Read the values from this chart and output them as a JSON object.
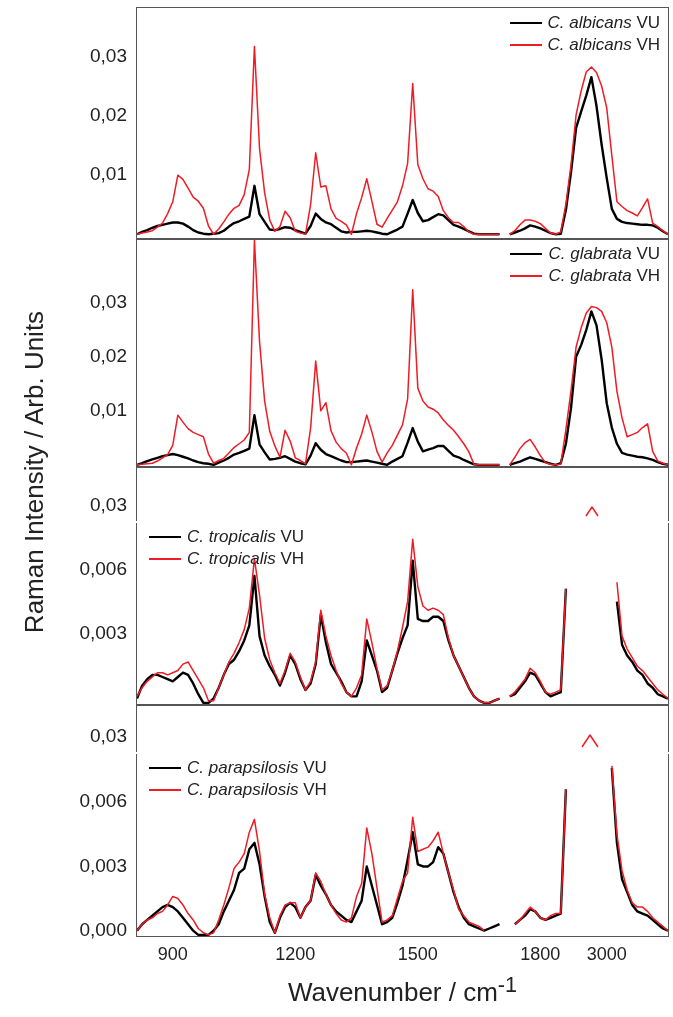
{
  "chart_data": [
    {
      "type": "line",
      "ylabel": "Raman Intensity / Arb. Units",
      "legend": "top right",
      "tick_labels": "y",
      "categories": [
        null,
        null,
        null,
        null,
        null,
        null,
        null,
        "900",
        null,
        null,
        null,
        null,
        null,
        null,
        null,
        null,
        null,
        null,
        null,
        null,
        null,
        null,
        null,
        null,
        null,
        null,
        null,
        null,
        null,
        null,
        null,
        "1200",
        null,
        null,
        null,
        null,
        null,
        null,
        null,
        null,
        null,
        null,
        null,
        null,
        null,
        null,
        null,
        null,
        null,
        null,
        null,
        null,
        null,
        null,
        null,
        "1500",
        null,
        null,
        null,
        null,
        null,
        null,
        null,
        null,
        null,
        null,
        null,
        null,
        null,
        null,
        null,
        null,
        null,
        null,
        null,
        null,
        null,
        null,
        null,
        "1800",
        null,
        null,
        null,
        null,
        null,
        null,
        null,
        null,
        null,
        null,
        null,
        null,
        "3000",
        null,
        null,
        null,
        null,
        null,
        null,
        null,
        null,
        null,
        null,
        null,
        null
      ],
      "ylim": [
        -0.0008,
        0.0383
      ],
      "yticks": [
        {
          "value": 0.01,
          "label": "0,01"
        },
        {
          "value": 0.02,
          "label": "0,02"
        },
        {
          "value": 0.03,
          "label": "0,03"
        }
      ],
      "series": [
        {
          "name": "C. albicans VU",
          "color": "#000000",
          "values": [
            0,
            0.0004,
            0.0007,
            0.0011,
            0.0014,
            0.0016,
            0.0018,
            0.002,
            0.002,
            0.0018,
            0.0013,
            0.0007,
            0.0003,
            0.0001,
            0,
            0.0001,
            0.0002,
            0.0006,
            0.0013,
            0.0019,
            0.0022,
            0.0026,
            0.003,
            0.0082,
            0.0034,
            0.0021,
            0.0008,
            0.0007,
            0.0009,
            0.0012,
            0.0011,
            0.0007,
            0.0004,
            0.0001,
            0.0014,
            0.0035,
            0.0026,
            0.002,
            0.0017,
            0.0011,
            0.0005,
            0.0003,
            0.0004,
            0.0004,
            0.0005,
            0.0006,
            0.0005,
            0.0003,
            0.0001,
            0,
            0.0004,
            0.0008,
            0.0013,
            0.0035,
            0.0058,
            0.0036,
            0.0022,
            0.0024,
            0.0029,
            0.0034,
            0.0032,
            0.0024,
            0.0016,
            0.0013,
            0.0009,
            0.0005,
            0.0001,
            0,
            0,
            0,
            0,
            0,
            null,
            0,
            0.0003,
            0.0006,
            0.001,
            0.0015,
            0.0013,
            0.001,
            0.0006,
            0.0002,
            0,
            0.0001,
            0.0041,
            0.0105,
            0.018,
            0.0208,
            0.0235,
            0.0266,
            0.0217,
            0.0152,
            0.0095,
            0.0043,
            0.0026,
            0.0021,
            0.0019,
            0.0018,
            0.0017,
            0.0016,
            0.0016,
            0.0015,
            0.0011,
            0.0005,
            0
          ]
        },
        {
          "name": "C. albicans VH",
          "color": "#ee1c25",
          "values": [
            0,
            0.0002,
            0.0004,
            0.0006,
            0.0012,
            0.0019,
            0.0035,
            0.0055,
            0.01,
            0.0093,
            0.0078,
            0.0063,
            0.0056,
            0.0044,
            0.0014,
            0,
            0.0009,
            0.0021,
            0.0034,
            0.0044,
            0.0049,
            0.0067,
            0.011,
            0.0318,
            0.0145,
            0.007,
            0.0024,
            0.0005,
            0.0013,
            0.0039,
            0.0028,
            0.0005,
            0.0002,
            0,
            0.005,
            0.0138,
            0.008,
            0.0082,
            0.0043,
            0.0027,
            0.0022,
            0.0016,
            0,
            0.0035,
            0.0062,
            0.0094,
            0.0056,
            0.0017,
            0.0012,
            0.0027,
            0.0041,
            0.0055,
            0.0082,
            0.012,
            0.0255,
            0.0118,
            0.0094,
            0.0077,
            0.0073,
            0.0064,
            0.004,
            0.0028,
            0.002,
            0.002,
            0.0013,
            0.0004,
            0,
            0,
            0,
            0,
            0,
            0,
            null,
            0,
            0.0006,
            0.0016,
            0.0024,
            0.0024,
            0.0022,
            0.0018,
            0.001,
            0.0002,
            0,
            0.0004,
            0.0051,
            0.0117,
            0.0202,
            0.0243,
            0.0275,
            0.0283,
            0.0274,
            0.0251,
            0.0214,
            0.0133,
            0.0055,
            0.0047,
            0.004,
            0.0036,
            0.0031,
            0.0045,
            0.006,
            0.0019,
            0.0013,
            0.0006,
            0
          ]
        }
      ]
    },
    {
      "type": "line",
      "legend": "top right",
      "tick_labels": "y",
      "categories": [
        null,
        null,
        null,
        null,
        null,
        null,
        null,
        "900",
        null,
        null,
        null,
        null,
        null,
        null,
        null,
        null,
        null,
        null,
        null,
        null,
        null,
        null,
        null,
        null,
        null,
        null,
        null,
        null,
        null,
        null,
        null,
        "1200",
        null,
        null,
        null,
        null,
        null,
        null,
        null,
        null,
        null,
        null,
        null,
        null,
        null,
        null,
        null,
        null,
        null,
        null,
        null,
        null,
        null,
        null,
        null,
        "1500",
        null,
        null,
        null,
        null,
        null,
        null,
        null,
        null,
        null,
        null,
        null,
        null,
        null,
        null,
        null,
        null,
        null,
        null,
        null,
        null,
        null,
        null,
        null,
        "1800",
        null,
        null,
        null,
        null,
        null,
        null,
        null,
        null,
        null,
        null,
        null,
        null,
        "3000",
        null,
        null,
        null,
        null,
        null,
        null,
        null,
        null,
        null,
        null,
        null,
        null
      ],
      "ylim": [
        -0.0004,
        0.0418
      ],
      "yticks": [
        {
          "value": 0.01,
          "label": "0,01"
        },
        {
          "value": 0.02,
          "label": "0,02"
        },
        {
          "value": 0.03,
          "label": "0,03"
        }
      ],
      "series": [
        {
          "name": "C. glabrata VU",
          "color": "#000000",
          "values": [
            0,
            0.0003,
            0.0007,
            0.001,
            0.0013,
            0.0016,
            0.0018,
            0.002,
            0.0018,
            0.0015,
            0.0012,
            0.0008,
            0.0005,
            0.0003,
            0.0002,
            0,
            0.0004,
            0.0008,
            0.0013,
            0.0019,
            0.0022,
            0.0026,
            0.003,
            0.0092,
            0.0038,
            0.0023,
            0.001,
            0.0011,
            0.0013,
            0.0016,
            0.0011,
            0.0006,
            0.0003,
            0.0001,
            0.0017,
            0.004,
            0.0028,
            0.002,
            0.0016,
            0.0012,
            0.0008,
            0.0005,
            0.0005,
            0.0006,
            0.0007,
            0.0008,
            0.0006,
            0.0004,
            0.0002,
            0,
            0.0006,
            0.0011,
            0.0016,
            0.0041,
            0.0068,
            0.0043,
            0.0025,
            0.0028,
            0.0031,
            0.0035,
            0.0035,
            0.0026,
            0.0017,
            0.0014,
            0.0009,
            0.0005,
            0.0001,
            0,
            0,
            0,
            0,
            0,
            null,
            0,
            0.0003,
            0.0006,
            0.001,
            0.0014,
            0.0011,
            0.0008,
            0.0005,
            0.0002,
            0,
            0.0003,
            0.0039,
            0.0105,
            0.02,
            0.0222,
            0.025,
            0.0284,
            0.0258,
            0.0195,
            0.0114,
            0.0069,
            0.0039,
            0.0022,
            0.0019,
            0.0017,
            0.0015,
            0.0014,
            0.0012,
            0.0009,
            0.0005,
            0.0002,
            0
          ]
        },
        {
          "name": "C. glabrata VH",
          "color": "#ee1c25",
          "values": [
            0,
            0.0001,
            0.0002,
            0.0003,
            0.0007,
            0.0013,
            0.0019,
            0.0036,
            0.0092,
            0.0079,
            0.0067,
            0.006,
            0.0056,
            0.0052,
            0.002,
            0.0003,
            0.0008,
            0.0012,
            0.0022,
            0.0032,
            0.0039,
            0.0046,
            0.006,
            0.0416,
            0.0228,
            0.0118,
            0.0062,
            0.0035,
            0.0014,
            0.0064,
            0.0044,
            0.0013,
            0.0008,
            0.0002,
            0.0068,
            0.0192,
            0.01,
            0.0115,
            0.0063,
            0.0042,
            0.003,
            0.0022,
            0,
            0.0031,
            0.0057,
            0.0092,
            0.0061,
            0.0025,
            0.0005,
            0.0022,
            0.0036,
            0.0055,
            0.0074,
            0.0122,
            0.0324,
            0.0142,
            0.0118,
            0.0107,
            0.0103,
            0.0096,
            0.0083,
            0.0073,
            0.0064,
            0.0052,
            0.0039,
            0.0024,
            0.0001,
            0,
            0,
            0,
            0,
            0,
            null,
            0,
            0.0014,
            0.003,
            0.0041,
            0.0047,
            0.0033,
            0.0017,
            0.0004,
            0.0001,
            0,
            0.0001,
            0.0065,
            0.0137,
            0.0218,
            0.0254,
            0.0281,
            0.0293,
            0.0291,
            0.0284,
            0.0263,
            0.0218,
            0.0136,
            0.0087,
            0.0052,
            0.0056,
            0.006,
            0.0069,
            0.0076,
            0.0025,
            0.0007,
            0.0003,
            0
          ]
        }
      ]
    },
    {
      "type": "other",
      "annotations": [
        "0,03"
      ]
    },
    {
      "type": "line",
      "legend": "top left",
      "tick_labels": "y",
      "categories": [
        null,
        null,
        null,
        null,
        null,
        null,
        null,
        "900",
        null,
        null,
        null,
        null,
        null,
        null,
        null,
        null,
        null,
        null,
        null,
        null,
        null,
        null,
        null,
        null,
        null,
        null,
        null,
        null,
        null,
        null,
        null,
        "1200",
        null,
        null,
        null,
        null,
        null,
        null,
        null,
        null,
        null,
        null,
        null,
        null,
        null,
        null,
        null,
        null,
        null,
        null,
        null,
        null,
        null,
        null,
        null,
        "1500",
        null,
        null,
        null,
        null,
        null,
        null,
        null,
        null,
        null,
        null,
        null,
        null,
        null,
        null,
        null,
        null,
        null,
        null,
        null,
        null,
        null,
        null,
        null,
        "1800",
        null,
        null,
        null,
        null,
        null,
        null,
        null,
        null,
        null,
        null,
        null,
        null,
        "3000",
        null,
        null,
        null,
        null,
        null,
        null,
        null,
        null,
        null,
        null,
        null,
        null
      ],
      "ylim": [
        -0.0003,
        0.0082
      ],
      "yticks": [
        {
          "value": 0.003,
          "label": "0,003"
        },
        {
          "value": 0.006,
          "label": "0,006"
        }
      ],
      "series": [
        {
          "name": "C. tropicalis VU",
          "color": "#000000",
          "values": [
            0,
            0.0006,
            0.0009,
            0.0011,
            0.0011,
            0.001,
            0.0009,
            0.0008,
            0.001,
            0.0012,
            0.0011,
            0.0007,
            0.0002,
            -0.0002,
            -0.0002,
            0,
            0.0005,
            0.0011,
            0.0016,
            0.0018,
            0.0022,
            0.0027,
            0.0034,
            0.0057,
            0.0029,
            0.002,
            0.0015,
            0.0011,
            0.0006,
            0.0012,
            0.002,
            0.0016,
            0.0009,
            0.0004,
            0.0007,
            0.0016,
            0.0039,
            0.0026,
            0.0016,
            0.0012,
            0.0008,
            0.0003,
            0.0001,
            0.0001,
            0.0008,
            0.0027,
            0.002,
            0.0013,
            0.0003,
            0.0005,
            0.0013,
            0.0021,
            0.0028,
            0.0034,
            0.0064,
            0.0037,
            0.0036,
            0.0036,
            0.0038,
            0.0038,
            0.0036,
            0.0027,
            0.002,
            0.0015,
            0.001,
            0.0005,
            0.0001,
            -0.0001,
            -0.0002,
            -0.0002,
            -0.0001,
            0,
            null,
            0.0001,
            0.0002,
            0.0005,
            0.0008,
            0.0012,
            0.0011,
            0.0007,
            0.0003,
            0.0001,
            0.0002,
            0.0003,
            0.0051,
            null,
            null,
            null,
            null,
            null,
            null,
            null,
            null,
            null,
            0.0045,
            0.0025,
            0.002,
            0.0017,
            0.0013,
            0.0011,
            0.0007,
            0.0005,
            0.0002,
            0.0001,
            0
          ]
        },
        {
          "name": "C. tropicalis VH",
          "color": "#ee1c25",
          "values": [
            0.0001,
            0.0005,
            0.0008,
            0.001,
            0.0012,
            0.0012,
            0.0011,
            0.0012,
            0.0013,
            0.0016,
            0.0017,
            0.0013,
            0.0009,
            0.0005,
            -0.0001,
            -0.0001,
            0.0005,
            0.0011,
            0.0017,
            0.0021,
            0.0026,
            0.0032,
            0.0042,
            0.0065,
            0.0048,
            0.0028,
            0.0018,
            0.0012,
            0.0007,
            0.0013,
            0.0021,
            0.0017,
            0.001,
            0.0004,
            0.0008,
            0.0017,
            0.0041,
            0.0029,
            0.002,
            0.0013,
            0.0007,
            0.0003,
            0.0001,
            0.0005,
            0.0011,
            0.0037,
            0.0026,
            0.0014,
            0.0004,
            0.0006,
            0.0013,
            0.0022,
            0.0033,
            0.0045,
            0.0074,
            0.0052,
            0.0043,
            0.0041,
            0.0042,
            0.0041,
            0.0039,
            0.0028,
            0.002,
            0.0015,
            0.001,
            0.0005,
            0.0001,
            -0.0001,
            -0.0002,
            -0.0002,
            -0.0001,
            0,
            null,
            0.0001,
            0.0003,
            0.0006,
            0.0009,
            0.0014,
            0.0012,
            0.0008,
            0.0003,
            0.0002,
            0.0003,
            0.0004,
            0.0051,
            null,
            null,
            null,
            null,
            null,
            null,
            null,
            null,
            null,
            0.0054,
            0.0029,
            0.0023,
            0.0019,
            0.0015,
            0.0013,
            0.001,
            0.0007,
            0.0004,
            0.0002,
            0
          ]
        }
      ]
    },
    {
      "type": "other",
      "annotations": [
        "0,03"
      ]
    },
    {
      "type": "line",
      "xlabel": "Wavenumber / cm$^{-1}$",
      "legend": "top left",
      "categories": [
        null,
        null,
        null,
        null,
        null,
        null,
        null,
        "900",
        null,
        null,
        null,
        null,
        null,
        null,
        null,
        null,
        null,
        null,
        null,
        null,
        null,
        null,
        null,
        null,
        null,
        null,
        null,
        null,
        null,
        null,
        null,
        "1200",
        null,
        null,
        null,
        null,
        null,
        null,
        null,
        null,
        null,
        null,
        null,
        null,
        null,
        null,
        null,
        null,
        null,
        null,
        null,
        null,
        null,
        null,
        null,
        "1500",
        null,
        null,
        null,
        null,
        null,
        null,
        null,
        null,
        null,
        null,
        null,
        null,
        null,
        null,
        null,
        null,
        null,
        null,
        null,
        null,
        null,
        null,
        null,
        "1800",
        null,
        null,
        null,
        null,
        null,
        null,
        null,
        null,
        null,
        null,
        null,
        null,
        "3000",
        null,
        null,
        null,
        null,
        null,
        null,
        null,
        null,
        null,
        null,
        null,
        null
      ],
      "ylim": [
        -0.00025,
        0.0083
      ],
      "yticks": [
        {
          "value": 0,
          "label": "0,000"
        },
        {
          "value": 0.003,
          "label": "0,003"
        },
        {
          "value": 0.006,
          "label": "0,006"
        }
      ],
      "series": [
        {
          "name": "C. parapsilosis VU",
          "color": "#000000",
          "values": [
            0,
            0.0003,
            0.0005,
            0.0007,
            0.0009,
            0.0011,
            0.0012,
            0.0011,
            0.0009,
            0.0006,
            0.0003,
            0,
            -0.0002,
            -0.0002,
            -0.0002,
            0,
            0.0003,
            0.0009,
            0.0014,
            0.0019,
            0.0027,
            0.0029,
            0.0038,
            0.0041,
            0.0031,
            0.0016,
            0.0004,
            -0.0001,
            0.0006,
            0.0011,
            0.0013,
            0.0011,
            0.0006,
            0.0011,
            0.0014,
            0.0026,
            0.0021,
            0.0017,
            0.0012,
            0.0009,
            0.0007,
            0.0005,
            0.0004,
            0.0009,
            0.0014,
            0.003,
            0.0021,
            0.0012,
            0.0003,
            0.0004,
            0.0006,
            0.0013,
            0.0021,
            0.0033,
            0.0046,
            0.0031,
            0.003,
            0.003,
            0.0032,
            0.0039,
            0.0036,
            0.0027,
            0.0018,
            0.0011,
            0.0006,
            0.0003,
            0.0002,
            0.0001,
            0,
            0.0001,
            0.0002,
            0.0003,
            null,
            null,
            0.0003,
            0.0005,
            0.0007,
            0.001,
            0.0009,
            0.0006,
            0.0005,
            0.0006,
            0.0007,
            0.0008,
            0.0066,
            null,
            null,
            null,
            null,
            null,
            null,
            null,
            null,
            0.0076,
            0.0041,
            0.0024,
            0.0018,
            0.0012,
            0.0009,
            0.0008,
            0.0007,
            0.0005,
            0.0003,
            0.0001,
            0
          ]
        },
        {
          "name": "C. parapsilosis VH",
          "color": "#ee1c25",
          "values": [
            0,
            0.0003,
            0.0005,
            0.0006,
            0.0008,
            0.0009,
            0.0012,
            0.0016,
            0.0015,
            0.0012,
            0.0008,
            0.0005,
            0.0001,
            -0.0001,
            -0.0002,
            -0.0001,
            0.0005,
            0.0012,
            0.002,
            0.0029,
            0.0032,
            0.0036,
            0.0046,
            0.0052,
            0.0037,
            0.0017,
            0.0006,
            -0.0001,
            0.0007,
            0.0012,
            0.0013,
            0.0013,
            0.0006,
            0.0011,
            0.0014,
            0.0027,
            0.0023,
            0.0017,
            0.0012,
            0.0008,
            0.0005,
            0.0004,
            0.0006,
            0.0016,
            0.0022,
            0.0048,
            0.0036,
            0.002,
            0.0004,
            0.0005,
            0.0007,
            0.0015,
            0.0023,
            0.0027,
            0.0053,
            0.0037,
            0.0038,
            0.0039,
            0.0042,
            0.0046,
            0.0036,
            0.0027,
            0.0019,
            0.001,
            0.0007,
            0.0004,
            0.0003,
            0.0002,
            0,
            null,
            null,
            null,
            null,
            null,
            0.0003,
            0.0005,
            0.0008,
            0.0011,
            0.0009,
            0.0006,
            0.0005,
            0.0007,
            0.0008,
            0.0008,
            0.0066,
            null,
            null,
            null,
            null,
            null,
            null,
            null,
            null,
            0.0077,
            0.0045,
            0.0028,
            0.0019,
            0.0013,
            0.0011,
            0.0011,
            0.0009,
            0.0006,
            0.0004,
            0.0002,
            0
          ]
        }
      ]
    }
  ]
}
